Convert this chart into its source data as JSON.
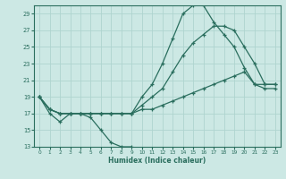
{
  "bg_color": "#cce8e4",
  "grid_color": "#afd4cf",
  "line_color": "#2a6e5e",
  "xlabel": "Humidex (Indice chaleur)",
  "xlim": [
    -0.5,
    23.5
  ],
  "ylim": [
    13,
    30
  ],
  "yticks": [
    13,
    15,
    17,
    19,
    21,
    23,
    25,
    27,
    29
  ],
  "xticks": [
    0,
    1,
    2,
    3,
    4,
    5,
    6,
    7,
    8,
    9,
    10,
    11,
    12,
    13,
    14,
    15,
    16,
    17,
    18,
    19,
    20,
    21,
    22,
    23
  ],
  "lines": [
    {
      "x": [
        0,
        1,
        2,
        3,
        4,
        5,
        6,
        7,
        8,
        9
      ],
      "y": [
        19,
        17,
        16,
        17,
        17,
        16.5,
        15,
        13.5,
        13,
        13
      ]
    },
    {
      "x": [
        0,
        1,
        2,
        3,
        4,
        5,
        6,
        7,
        8,
        9,
        10,
        11,
        12,
        13,
        14,
        15,
        16,
        17,
        18,
        19,
        20,
        21,
        22,
        23
      ],
      "y": [
        19,
        17.5,
        17,
        17,
        17,
        17,
        17,
        17,
        17,
        17,
        19,
        20.5,
        23,
        26,
        29,
        30,
        30,
        28,
        26.5,
        25,
        22.5,
        20.5,
        20.5,
        20.5
      ]
    },
    {
      "x": [
        0,
        1,
        2,
        3,
        4,
        5,
        6,
        7,
        8,
        9,
        10,
        11,
        12,
        13,
        14,
        15,
        16,
        17,
        18,
        19,
        20,
        21,
        22,
        23
      ],
      "y": [
        19,
        17.5,
        17,
        17,
        17,
        17,
        17,
        17,
        17,
        17,
        18,
        19,
        20,
        22,
        24,
        25.5,
        26.5,
        27.5,
        27.5,
        27,
        25,
        23,
        20.5,
        20.5
      ]
    },
    {
      "x": [
        0,
        1,
        2,
        3,
        4,
        5,
        6,
        7,
        8,
        9,
        10,
        11,
        12,
        13,
        14,
        15,
        16,
        17,
        18,
        19,
        20,
        21,
        22,
        23
      ],
      "y": [
        19,
        17.5,
        17,
        17,
        17,
        17,
        17,
        17,
        17,
        17,
        17.5,
        17.5,
        18,
        18.5,
        19,
        19.5,
        20,
        20.5,
        21,
        21.5,
        22,
        20.5,
        20,
        20
      ]
    }
  ]
}
